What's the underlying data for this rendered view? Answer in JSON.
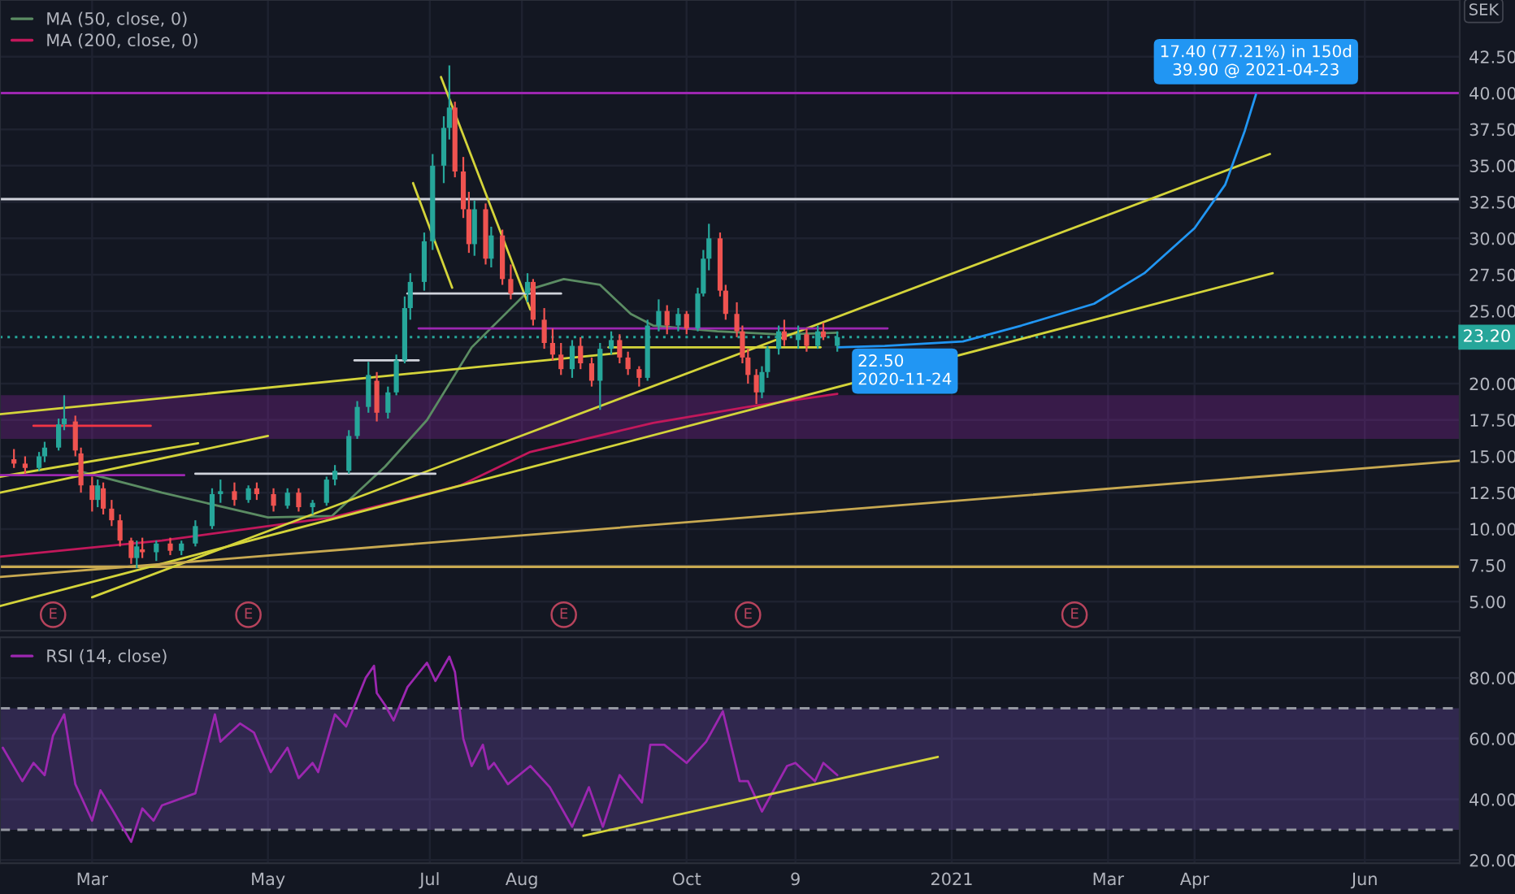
{
  "chart_data": [
    {
      "type": "candlestick",
      "ylabel": "SEK",
      "legend": "top left",
      "grid": true,
      "tick_labels": "y",
      "xlim": [
        "2020-01-29",
        "2021-07-05"
      ],
      "ylim": [
        3.0,
        46.4
      ],
      "xticks": [
        {
          "value": "2020-03-02",
          "label": null
        },
        {
          "value": "2020-05-04",
          "label": null
        },
        {
          "value": "2020-07-01",
          "label": null
        },
        {
          "value": "2020-08-03",
          "label": null
        },
        {
          "value": "2020-10-01",
          "label": null
        },
        {
          "value": "2020-11-09",
          "label": null
        },
        {
          "value": "2021-01-04",
          "label": null
        },
        {
          "value": "2021-03-01",
          "label": null
        },
        {
          "value": "2021-04-01",
          "label": null
        },
        {
          "value": "2021-06-01",
          "label": null
        }
      ],
      "yticks": [
        {
          "value": 5,
          "label": "5.00"
        },
        {
          "value": 7.5,
          "label": "7.50"
        },
        {
          "value": 10,
          "label": "10.00"
        },
        {
          "value": 12.5,
          "label": "12.50"
        },
        {
          "value": 15,
          "label": "15.00"
        },
        {
          "value": 17.5,
          "label": "17.50"
        },
        {
          "value": 20,
          "label": "20.00"
        },
        {
          "value": 22.5,
          "label": null
        },
        {
          "value": 25,
          "label": "25.00"
        },
        {
          "value": 27.5,
          "label": "27.50"
        },
        {
          "value": 30,
          "label": "30.00"
        },
        {
          "value": 32.5,
          "label": "32.50"
        },
        {
          "value": 35,
          "label": "35.00"
        },
        {
          "value": 37.5,
          "label": "37.50"
        },
        {
          "value": 40,
          "label": "40.00"
        },
        {
          "value": 42.5,
          "label": "42.50"
        }
      ],
      "x": [
        "2020-02-03",
        "2020-02-07",
        "2020-02-12",
        "2020-02-14",
        "2020-02-19",
        "2020-02-21",
        "2020-02-25",
        "2020-02-27",
        "2020-03-02",
        "2020-03-04",
        "2020-03-06",
        "2020-03-09",
        "2020-03-12",
        "2020-03-16",
        "2020-03-18",
        "2020-03-20",
        "2020-03-25",
        "2020-03-30",
        "2020-04-03",
        "2020-04-08",
        "2020-04-14",
        "2020-04-17",
        "2020-04-22",
        "2020-04-27",
        "2020-04-30",
        "2020-05-06",
        "2020-05-11",
        "2020-05-15",
        "2020-05-20",
        "2020-05-25",
        "2020-05-28",
        "2020-06-02",
        "2020-06-05",
        "2020-06-09",
        "2020-06-12",
        "2020-06-16",
        "2020-06-19",
        "2020-06-22",
        "2020-06-24",
        "2020-06-29",
        "2020-07-02",
        "2020-07-06",
        "2020-07-08",
        "2020-07-10",
        "2020-07-13",
        "2020-07-15",
        "2020-07-17",
        "2020-07-21",
        "2020-07-23",
        "2020-07-27",
        "2020-07-30",
        "2020-08-05",
        "2020-08-07",
        "2020-08-11",
        "2020-08-14",
        "2020-08-17",
        "2020-08-21",
        "2020-08-24",
        "2020-08-28",
        "2020-08-31",
        "2020-09-04",
        "2020-09-07",
        "2020-09-10",
        "2020-09-14",
        "2020-09-17",
        "2020-09-21",
        "2020-09-24",
        "2020-09-28",
        "2020-10-01",
        "2020-10-05",
        "2020-10-07",
        "2020-10-09",
        "2020-10-13",
        "2020-10-15",
        "2020-10-19",
        "2020-10-21",
        "2020-10-23",
        "2020-10-26",
        "2020-10-28",
        "2020-10-30",
        "2020-11-03",
        "2020-11-05",
        "2020-11-10",
        "2020-11-13",
        "2020-11-17",
        "2020-11-19",
        "2020-11-24"
      ],
      "ohlc": [
        [
          14.8,
          15.5,
          14.2,
          14.5
        ],
        [
          14.5,
          15.0,
          13.8,
          14.2
        ],
        [
          14.2,
          15.3,
          14.0,
          15.0
        ],
        [
          15.0,
          16.0,
          14.6,
          15.6
        ],
        [
          15.6,
          17.6,
          15.4,
          17.2
        ],
        [
          17.2,
          19.2,
          16.8,
          17.6
        ],
        [
          17.4,
          17.8,
          15.0,
          15.4
        ],
        [
          15.2,
          15.6,
          12.5,
          13.0
        ],
        [
          13.0,
          13.6,
          11.2,
          12.0
        ],
        [
          12.0,
          13.4,
          11.5,
          13.0
        ],
        [
          12.8,
          13.2,
          11.0,
          11.4
        ],
        [
          11.4,
          12.0,
          10.2,
          10.6
        ],
        [
          10.6,
          11.0,
          8.8,
          9.2
        ],
        [
          9.2,
          9.4,
          7.6,
          8.0
        ],
        [
          8.0,
          9.2,
          7.3,
          8.8
        ],
        [
          8.6,
          9.4,
          8.0,
          8.4
        ],
        [
          8.4,
          9.2,
          7.8,
          9.0
        ],
        [
          9.0,
          9.4,
          8.2,
          8.5
        ],
        [
          8.5,
          9.2,
          8.2,
          9.0
        ],
        [
          9.0,
          10.6,
          8.8,
          10.2
        ],
        [
          10.2,
          12.8,
          10.0,
          12.4
        ],
        [
          12.4,
          13.4,
          11.8,
          12.6
        ],
        [
          12.6,
          13.2,
          11.6,
          12.0
        ],
        [
          12.0,
          13.0,
          11.8,
          12.8
        ],
        [
          12.8,
          13.2,
          12.0,
          12.4
        ],
        [
          12.4,
          12.8,
          11.2,
          11.6
        ],
        [
          11.6,
          12.8,
          11.4,
          12.5
        ],
        [
          12.5,
          12.8,
          11.2,
          11.5
        ],
        [
          11.5,
          12.0,
          11.0,
          11.8
        ],
        [
          11.8,
          13.6,
          11.6,
          13.4
        ],
        [
          13.4,
          14.4,
          13.0,
          14.0
        ],
        [
          14.0,
          16.8,
          13.8,
          16.4
        ],
        [
          16.4,
          18.8,
          16.2,
          18.4
        ],
        [
          18.4,
          21.5,
          18.0,
          20.6
        ],
        [
          20.2,
          20.8,
          17.4,
          18.0
        ],
        [
          18.0,
          19.8,
          17.6,
          19.4
        ],
        [
          19.4,
          22.0,
          19.2,
          21.6
        ],
        [
          21.6,
          26.0,
          21.4,
          25.2
        ],
        [
          25.2,
          27.6,
          24.4,
          27.0
        ],
        [
          27.0,
          30.4,
          26.4,
          29.8
        ],
        [
          29.8,
          35.8,
          29.2,
          35.0
        ],
        [
          35.0,
          38.4,
          33.8,
          37.6
        ],
        [
          37.6,
          41.9,
          36.8,
          39.0
        ],
        [
          39.0,
          39.4,
          34.2,
          34.6
        ],
        [
          34.6,
          35.6,
          31.4,
          32.0
        ],
        [
          32.0,
          33.2,
          29.0,
          29.6
        ],
        [
          29.6,
          32.6,
          28.8,
          32.0
        ],
        [
          32.0,
          32.4,
          28.2,
          28.6
        ],
        [
          28.6,
          30.8,
          28.0,
          30.2
        ],
        [
          30.2,
          30.6,
          26.8,
          27.2
        ],
        [
          27.2,
          28.2,
          25.8,
          26.2
        ],
        [
          26.2,
          27.6,
          25.6,
          27.0
        ],
        [
          27.0,
          27.2,
          24.0,
          24.4
        ],
        [
          24.4,
          25.2,
          22.4,
          22.8
        ],
        [
          22.8,
          23.8,
          21.6,
          22.0
        ],
        [
          22.0,
          22.8,
          20.6,
          21.0
        ],
        [
          21.0,
          23.0,
          20.4,
          22.6
        ],
        [
          22.6,
          23.2,
          21.0,
          21.4
        ],
        [
          21.4,
          21.8,
          19.8,
          20.2
        ],
        [
          20.2,
          22.8,
          18.2,
          22.4
        ],
        [
          22.4,
          23.6,
          22.0,
          23.0
        ],
        [
          23.0,
          23.4,
          21.4,
          21.8
        ],
        [
          21.8,
          22.2,
          20.6,
          21.0
        ],
        [
          21.0,
          21.2,
          19.8,
          20.4
        ],
        [
          20.4,
          24.4,
          20.2,
          24.0
        ],
        [
          24.0,
          25.8,
          23.6,
          25.0
        ],
        [
          25.0,
          25.4,
          23.4,
          24.0
        ],
        [
          24.0,
          25.2,
          23.6,
          24.8
        ],
        [
          24.8,
          25.0,
          23.4,
          23.8
        ],
        [
          23.8,
          26.6,
          23.6,
          26.2
        ],
        [
          26.2,
          29.2,
          26.0,
          28.6
        ],
        [
          28.6,
          31.0,
          27.8,
          30.0
        ],
        [
          30.0,
          30.4,
          26.0,
          26.4
        ],
        [
          26.4,
          26.8,
          24.4,
          24.8
        ],
        [
          24.8,
          25.6,
          23.2,
          23.6
        ],
        [
          23.6,
          24.0,
          21.4,
          21.8
        ],
        [
          21.8,
          22.4,
          20.0,
          20.6
        ],
        [
          20.6,
          21.0,
          18.6,
          19.4
        ],
        [
          19.4,
          21.2,
          19.0,
          20.8
        ],
        [
          20.8,
          22.6,
          20.4,
          22.4
        ],
        [
          22.4,
          24.0,
          22.0,
          23.6
        ],
        [
          23.6,
          24.4,
          22.6,
          23.0
        ],
        [
          23.0,
          24.0,
          22.4,
          23.4
        ],
        [
          23.4,
          23.8,
          22.2,
          22.6
        ],
        [
          22.6,
          24.0,
          22.4,
          23.6
        ],
        [
          23.6,
          24.2,
          23.0,
          23.2
        ],
        [
          22.6,
          23.6,
          22.2,
          23.2
        ]
      ],
      "colors": [
        "#ef5350",
        "#ef5350",
        "#26a69a",
        "#26a69a",
        "#26a69a",
        "#26a69a",
        "#ef5350",
        "#ef5350",
        "#ef5350",
        "#26a69a",
        "#ef5350",
        "#ef5350",
        "#ef5350",
        "#ef5350",
        "#26a69a",
        "#ef5350",
        "#26a69a",
        "#ef5350",
        "#26a69a",
        "#26a69a",
        "#26a69a",
        "#26a69a",
        "#ef5350",
        "#26a69a",
        "#ef5350",
        "#ef5350",
        "#26a69a",
        "#ef5350",
        "#26a69a",
        "#26a69a",
        "#26a69a",
        "#26a69a",
        "#26a69a",
        "#26a69a",
        "#ef5350",
        "#26a69a",
        "#26a69a",
        "#26a69a",
        "#26a69a",
        "#26a69a",
        "#26a69a",
        "#26a69a",
        "#26a69a",
        "#ef5350",
        "#ef5350",
        "#ef5350",
        "#26a69a",
        "#ef5350",
        "#26a69a",
        "#ef5350",
        "#ef5350",
        "#26a69a",
        "#ef5350",
        "#ef5350",
        "#ef5350",
        "#ef5350",
        "#26a69a",
        "#ef5350",
        "#ef5350",
        "#26a69a",
        "#26a69a",
        "#ef5350",
        "#ef5350",
        "#ef5350",
        "#26a69a",
        "#26a69a",
        "#ef5350",
        "#26a69a",
        "#ef5350",
        "#26a69a",
        "#26a69a",
        "#26a69a",
        "#ef5350",
        "#ef5350",
        "#ef5350",
        "#ef5350",
        "#ef5350",
        "#ef5350",
        "#26a69a",
        "#26a69a",
        "#26a69a",
        "#ef5350",
        "#26a69a",
        "#ef5350",
        "#26a69a",
        "#ef5350",
        "#26a69a"
      ],
      "series": [
        {
          "type": "line",
          "name": "MA (50, close, 0)",
          "color": "#5b8c63",
          "x": [
            "2020-02-26",
            "2020-03-27",
            "2020-05-04",
            "2020-05-27",
            "2020-06-15",
            "2020-06-30",
            "2020-07-16",
            "2020-08-06",
            "2020-08-18",
            "2020-08-31",
            "2020-09-11",
            "2020-09-19",
            "2020-10-12",
            "2020-11-03",
            "2020-11-24"
          ],
          "values": [
            14.0,
            12.5,
            10.8,
            10.9,
            14.3,
            17.5,
            22.5,
            26.5,
            27.2,
            26.8,
            24.8,
            24.0,
            23.6,
            23.4,
            23.5
          ]
        },
        {
          "type": "line",
          "name": "MA (200, close, 0)",
          "color": "#c2185b",
          "x": [
            "2020-01-29",
            "2020-03-27",
            "2020-05-27",
            "2020-07-12",
            "2020-08-06",
            "2020-09-19",
            "2020-10-23",
            "2020-11-24"
          ],
          "values": [
            8.1,
            9.2,
            10.8,
            13.0,
            15.3,
            17.3,
            18.4,
            19.3
          ]
        },
        {
          "type": "line",
          "color": "#d4d43a",
          "x": [
            "2020-03-02",
            "2021-04-28"
          ],
          "values": [
            5.3,
            35.8
          ]
        },
        {
          "type": "line",
          "color": "#d4d43a",
          "x": [
            "2020-01-29",
            "2021-04-29"
          ],
          "values": [
            4.7,
            27.6
          ]
        },
        {
          "type": "line",
          "color": "#c8a951",
          "x": [
            "2020-01-29",
            "2021-07-05"
          ],
          "values": [
            6.7,
            14.7
          ]
        },
        {
          "type": "line",
          "color": "#d4d43a",
          "x": [
            "2020-01-29",
            "2020-09-06"
          ],
          "values": [
            17.9,
            22.1
          ]
        },
        {
          "type": "line",
          "color": "#d4d43a",
          "x": [
            "2020-01-29",
            "2020-05-04"
          ],
          "values": [
            12.5,
            16.4
          ]
        },
        {
          "type": "line",
          "color": "#d4d43a",
          "x": [
            "2020-01-29",
            "2020-04-09"
          ],
          "values": [
            13.6,
            15.9
          ]
        },
        {
          "type": "line",
          "color": "#d4d43a",
          "x": [
            "2020-07-05",
            "2020-08-06"
          ],
          "values": [
            41.1,
            25.1
          ]
        },
        {
          "type": "line",
          "color": "#d4d43a",
          "x": [
            "2020-06-25",
            "2020-07-09"
          ],
          "values": [
            33.8,
            26.6
          ]
        },
        {
          "type": "line",
          "color": "#d4d43a",
          "x": [
            "2020-09-03",
            "2020-11-18"
          ],
          "values": [
            22.5,
            22.5
          ]
        },
        {
          "type": "line",
          "color": "#d1d4dc",
          "x": [
            "2020-06-04",
            "2020-06-27"
          ],
          "values": [
            21.6,
            21.6
          ]
        },
        {
          "type": "line",
          "color": "#d1d4dc",
          "x": [
            "2020-04-08",
            "2020-07-03"
          ],
          "values": [
            13.8,
            13.8
          ]
        },
        {
          "type": "line",
          "color": "#d1d4dc",
          "x": [
            "2020-06-23",
            "2020-08-17"
          ],
          "values": [
            26.2,
            26.2
          ]
        },
        {
          "type": "line",
          "color": "#f23645",
          "x": [
            "2020-02-10",
            "2020-03-23"
          ],
          "values": [
            17.1,
            17.1
          ]
        },
        {
          "type": "line",
          "color": "#9c27b0",
          "x": [
            "2020-01-29",
            "2020-04-04"
          ],
          "values": [
            13.7,
            13.7
          ]
        },
        {
          "type": "line",
          "color": "#9c27b0",
          "x": [
            "2020-06-27",
            "2020-12-12"
          ],
          "values": [
            23.8,
            23.8
          ]
        },
        {
          "type": "line",
          "color": "#2196f3",
          "x": [
            "2020-11-24",
            "2020-12-11",
            "2021-01-08",
            "2021-01-29",
            "2021-02-24",
            "2021-03-14",
            "2021-04-01",
            "2021-04-12",
            "2021-04-19",
            "2021-04-23"
          ],
          "values": [
            22.5,
            22.6,
            22.9,
            24.0,
            25.5,
            27.6,
            30.7,
            33.7,
            37.4,
            39.9
          ]
        }
      ],
      "ref_lines": [
        {
          "axis": "y",
          "value": 40,
          "color": "#9c27b0",
          "line_style": "solid"
        },
        {
          "axis": "y",
          "value": 32.7,
          "color": "#d1d4dc",
          "line_style": "solid"
        },
        {
          "axis": "y",
          "value": 7.4,
          "color": "#c8a951",
          "line_style": "solid"
        },
        {
          "axis": "y",
          "value": 23.2,
          "label": "23.20",
          "color": "#26a69a",
          "line_style": "dotted"
        }
      ],
      "bands": [
        {
          "axis": "y",
          "from": 16.2,
          "to": 19.2,
          "color": "#9c27b0"
        }
      ],
      "annotations": [
        {
          "text": "17.40 (77.21%) in 150d\n39.90 @ 2021-04-23",
          "x": "2021-04-23",
          "y": 39.9
        },
        {
          "text": "22.50\n2020-11-24",
          "x": "2020-11-24",
          "y": 22.5
        },
        {
          "text": "E",
          "x": "2020-02-17",
          "y": 4.1
        },
        {
          "text": "E",
          "x": "2020-04-27",
          "y": 4.1
        },
        {
          "text": "E",
          "x": "2020-08-18",
          "y": 4.1
        },
        {
          "text": "E",
          "x": "2020-10-23",
          "y": 4.1
        },
        {
          "text": "E",
          "x": "2021-02-17",
          "y": 4.1
        }
      ]
    },
    {
      "type": "line",
      "legend": "top left",
      "grid": true,
      "xlim": [
        "2020-01-29",
        "2021-07-05"
      ],
      "ylim": [
        19,
        93.4
      ],
      "xticks": [
        {
          "value": "2020-03-02",
          "label": "Mar"
        },
        {
          "value": "2020-05-04",
          "label": "May"
        },
        {
          "value": "2020-07-01",
          "label": "Jul"
        },
        {
          "value": "2020-08-03",
          "label": "Aug"
        },
        {
          "value": "2020-10-01",
          "label": "Oct"
        },
        {
          "value": "2020-11-09",
          "label": "9"
        },
        {
          "value": "2021-01-04",
          "label": "2021"
        },
        {
          "value": "2021-03-01",
          "label": "Mar"
        },
        {
          "value": "2021-04-01",
          "label": "Apr"
        },
        {
          "value": "2021-06-01",
          "label": "Jun"
        }
      ],
      "yticks": [
        {
          "value": 20,
          "label": "20.00"
        },
        {
          "value": 40,
          "label": "40.00"
        },
        {
          "value": 60,
          "label": "60.00"
        },
        {
          "value": 80,
          "label": "80.00"
        }
      ],
      "series": [
        {
          "type": "line",
          "name": "RSI (14, close)",
          "color": "#9c27b0",
          "x": [
            "2020-01-30",
            "2020-02-06",
            "2020-02-10",
            "2020-02-14",
            "2020-02-17",
            "2020-02-21",
            "2020-02-25",
            "2020-03-02",
            "2020-03-05",
            "2020-03-09",
            "2020-03-16",
            "2020-03-20",
            "2020-03-24",
            "2020-03-27",
            "2020-04-08",
            "2020-04-15",
            "2020-04-17",
            "2020-04-24",
            "2020-04-29",
            "2020-05-05",
            "2020-05-11",
            "2020-05-15",
            "2020-05-20",
            "2020-05-22",
            "2020-05-28",
            "2020-06-01",
            "2020-06-08",
            "2020-06-11",
            "2020-06-12",
            "2020-06-15",
            "2020-06-18",
            "2020-06-23",
            "2020-06-30",
            "2020-07-03",
            "2020-07-08",
            "2020-07-10",
            "2020-07-13",
            "2020-07-16",
            "2020-07-20",
            "2020-07-22",
            "2020-07-24",
            "2020-07-29",
            "2020-08-06",
            "2020-08-13",
            "2020-08-21",
            "2020-08-27",
            "2020-09-01",
            "2020-09-07",
            "2020-09-15",
            "2020-09-18",
            "2020-09-23",
            "2020-10-01",
            "2020-10-08",
            "2020-10-14",
            "2020-10-20",
            "2020-10-23",
            "2020-10-28",
            "2020-11-06",
            "2020-11-09",
            "2020-11-16",
            "2020-11-19",
            "2020-11-24"
          ],
          "values": [
            57,
            46,
            52,
            48,
            61,
            68,
            45,
            33,
            43,
            37,
            26,
            37,
            33,
            38,
            42,
            68,
            59,
            65,
            62,
            49,
            57,
            47,
            52,
            49,
            68,
            64,
            80,
            84,
            75,
            71,
            66,
            77,
            85,
            79,
            87,
            82,
            60,
            51,
            58,
            50,
            52,
            45,
            51,
            44,
            31,
            44,
            31,
            48,
            39,
            58,
            58,
            52,
            59,
            69,
            46,
            46,
            36,
            51,
            52,
            46,
            52,
            48
          ]
        },
        {
          "type": "line",
          "color": "#d4d43a",
          "x": [
            "2020-08-25",
            "2020-12-30"
          ],
          "values": [
            28,
            54
          ]
        }
      ],
      "ref_lines": [
        {
          "axis": "y",
          "value": 70,
          "color": "#9598a1",
          "line_style": "dashed"
        },
        {
          "axis": "y",
          "value": 30,
          "color": "#9598a1",
          "line_style": "dashed"
        }
      ],
      "bands": [
        {
          "axis": "y",
          "from": 30,
          "to": 70,
          "color": "#7e57c2"
        }
      ]
    }
  ]
}
